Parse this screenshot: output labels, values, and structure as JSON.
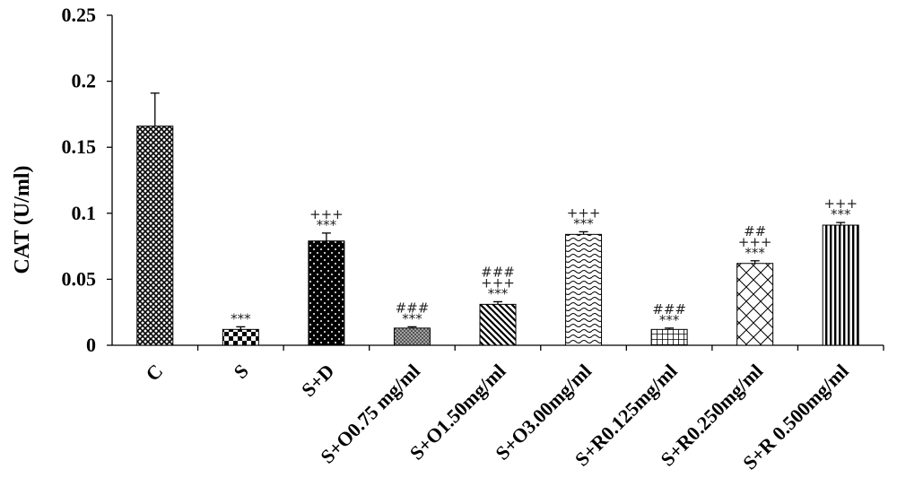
{
  "chart_data": {
    "type": "bar",
    "title": "",
    "xlabel": "",
    "ylabel": "CAT (U/ml)",
    "ylim": [
      0,
      0.25
    ],
    "yticks": [
      "0",
      "0.05",
      "0.1",
      "0.15",
      "0.2",
      "0.25"
    ],
    "grid": false,
    "categories": [
      "C",
      "S",
      "S+D",
      "S+O0.75 mg/ml",
      "S+O1.50mg/ml",
      "S+O3.00mg/ml",
      "S+R0.125mg/ml",
      "S+R0.250mg/ml",
      "S+R 0.500mg/ml"
    ],
    "values": [
      0.166,
      0.012,
      0.079,
      0.013,
      0.031,
      0.084,
      0.012,
      0.062,
      0.091
    ],
    "errors": [
      0.025,
      0.002,
      0.006,
      0.001,
      0.002,
      0.002,
      0.001,
      0.002,
      0.002
    ],
    "annotations": [
      [],
      [
        "***"
      ],
      [
        "***",
        "+++"
      ],
      [
        "***",
        "###"
      ],
      [
        "***",
        "+++",
        "###"
      ],
      [
        "***",
        "+++"
      ],
      [
        "***",
        "###"
      ],
      [
        "***",
        "+++",
        "##"
      ],
      [
        "***",
        "+++"
      ]
    ],
    "patterns": [
      "crosshatch",
      "checker",
      "dots-on-black",
      "fine-dots",
      "diagonal-stripes",
      "waves",
      "grid",
      "diamond",
      "vertical-stripes"
    ]
  }
}
